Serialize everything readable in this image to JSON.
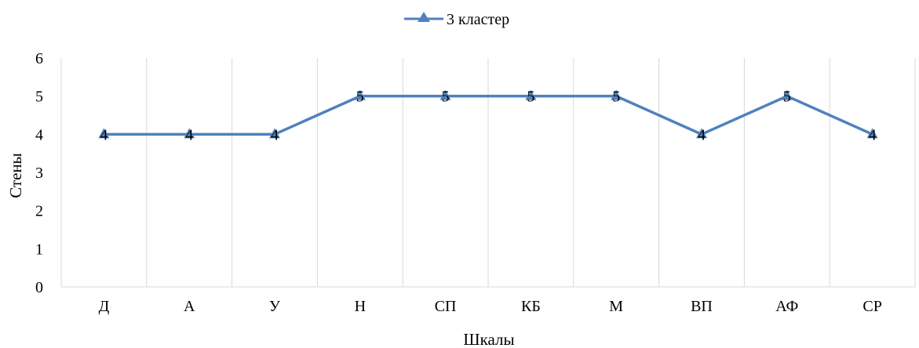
{
  "chart_data": {
    "type": "line",
    "categories": [
      "Д",
      "А",
      "У",
      "Н",
      "СП",
      "КБ",
      "М",
      "ВП",
      "АФ",
      "СР"
    ],
    "series": [
      {
        "name": "3 кластер",
        "values": [
          4,
          4,
          4,
          5,
          5,
          5,
          5,
          4,
          5,
          4
        ],
        "color": "#4F81BD"
      }
    ],
    "xlabel": "Шкалы",
    "ylabel": "Стены",
    "ylim": [
      0,
      6
    ],
    "yticks": [
      0,
      1,
      2,
      3,
      4,
      5,
      6
    ],
    "legend_position": "top",
    "data_labels": true,
    "grid": "vertical",
    "marker": "triangle"
  }
}
